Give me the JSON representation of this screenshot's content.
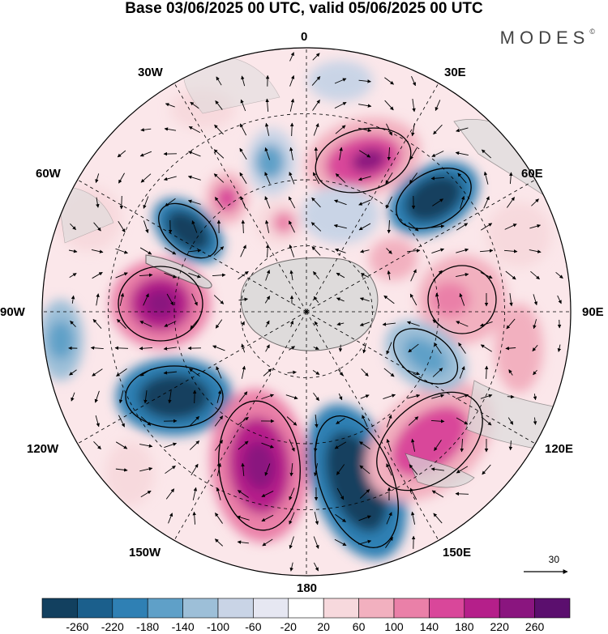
{
  "title": "Base 03/06/2025 00 UTC, valid 05/06/2025 00 UTC",
  "brand": "MODES",
  "brand_mark": "©",
  "longitude_labels": {
    "top": "0",
    "top_right": "30E",
    "right_upper": "60E",
    "right": "90E",
    "right_lower": "120E",
    "bottom_right": "150E",
    "bottom": "180",
    "bottom_left": "150W",
    "left_lower": "120W",
    "left": "90W",
    "left_upper": "60W",
    "top_left": "30W"
  },
  "reference_vector": "30",
  "colorbar": {
    "ticks": [
      "-260",
      "-220",
      "-180",
      "-140",
      "-100",
      "-60",
      "-20",
      "20",
      "60",
      "100",
      "140",
      "180",
      "220",
      "260"
    ],
    "colors": [
      "#12405f",
      "#1b5f8c",
      "#2f80b4",
      "#5fa0c8",
      "#9dbfd8",
      "#c9d4e6",
      "#e6e7f2",
      "#ffffff",
      "#f7d9dd",
      "#f2b0bf",
      "#ea80a8",
      "#d9479a",
      "#b51f8a",
      "#8a157f",
      "#5b0f6e"
    ]
  },
  "palette": {
    "land": "#d7d7d7",
    "coast": "#555555"
  }
}
